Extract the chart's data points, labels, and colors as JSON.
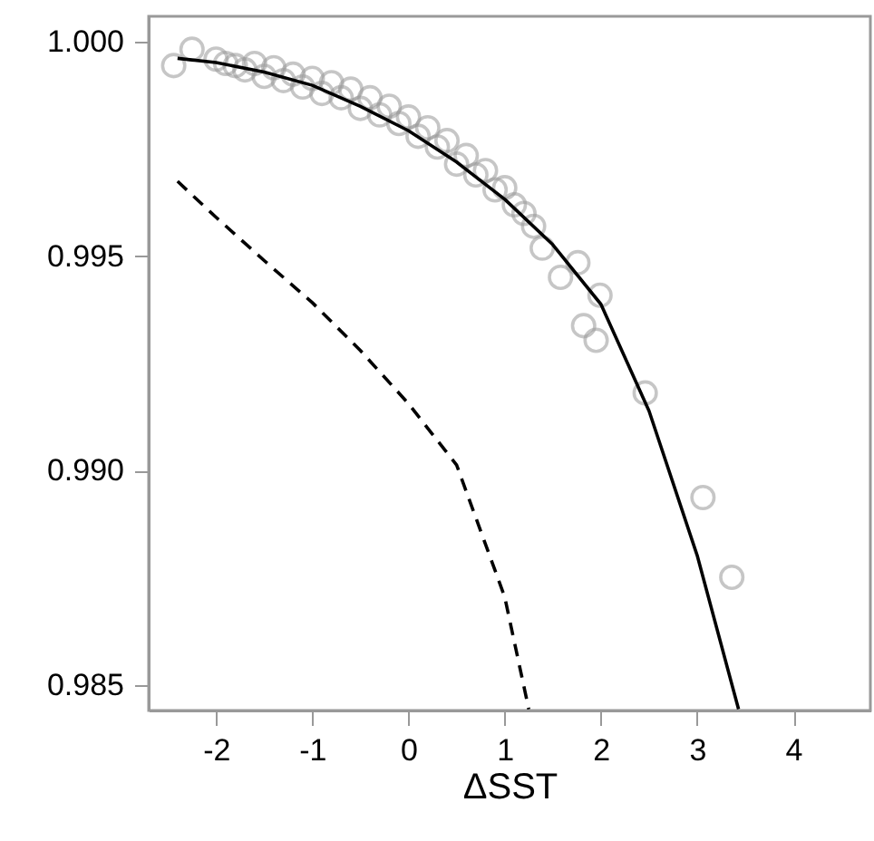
{
  "chart_data": {
    "type": "scatter",
    "xlabel": "ΔSST",
    "xlim": [
      -2.7,
      4.8
    ],
    "ylim": [
      0.9844,
      1.0006
    ],
    "xticks": [
      -2,
      -1,
      0,
      1,
      2,
      3,
      4
    ],
    "yticks": [
      {
        "value": 1.0,
        "label": "1.000"
      },
      {
        "value": 0.995,
        "label": "0.995"
      },
      {
        "value": 0.99,
        "label": "0.990"
      },
      {
        "value": 0.985,
        "label": "0.985"
      }
    ],
    "series": [
      {
        "marker": "circle",
        "color": "#999999",
        "x": [
          -2.44,
          -2.25,
          -2.0,
          -1.9,
          -1.8,
          -1.7,
          -1.6,
          -1.5,
          -1.4,
          -1.3,
          -1.2,
          -1.1,
          -1.0,
          -0.9,
          -0.8,
          -0.7,
          -0.6,
          -0.5,
          -0.4,
          -0.3,
          -0.2,
          -0.1,
          0.0,
          0.1,
          0.2,
          0.3,
          0.4,
          0.5,
          0.6,
          0.7,
          0.8,
          0.9,
          1.0,
          1.1,
          1.2,
          1.3,
          1.39,
          1.58,
          1.76,
          1.82,
          1.95,
          1.99,
          2.46,
          3.06,
          3.36
        ],
        "values": [
          0.99945,
          0.99983,
          0.9996,
          0.9995,
          0.99945,
          0.99935,
          0.9995,
          0.9992,
          0.9994,
          0.9991,
          0.99925,
          0.99895,
          0.99915,
          0.9988,
          0.99905,
          0.9987,
          0.9989,
          0.99845,
          0.9987,
          0.9983,
          0.9985,
          0.9981,
          0.99825,
          0.9978,
          0.998,
          0.99755,
          0.9977,
          0.99715,
          0.99735,
          0.9969,
          0.997,
          0.99655,
          0.9966,
          0.9962,
          0.996,
          0.9957,
          0.99519,
          0.99451,
          0.99485,
          0.99338,
          0.99304,
          0.99409,
          0.99181,
          0.98937,
          0.98751
        ]
      },
      {
        "type": "line",
        "line_style": "solid",
        "color": "#000000",
        "x": [
          -2.4,
          -2,
          -1.5,
          -1,
          -0.5,
          0,
          0.5,
          1,
          1.5,
          2,
          2.5,
          3,
          3.43
        ],
        "values": [
          0.99962,
          0.99952,
          0.9993,
          0.99899,
          0.9985,
          0.99793,
          0.9972,
          0.99633,
          0.99527,
          0.99388,
          0.99139,
          0.98802,
          0.98443
        ]
      },
      {
        "type": "line",
        "line_style": "dashed",
        "color": "#000000",
        "x": [
          -2.4,
          -2,
          -1.5,
          -1,
          -0.5,
          0,
          0.5,
          1,
          1.25
        ],
        "values": [
          0.99675,
          0.99591,
          0.9949,
          0.99392,
          0.9928,
          0.99156,
          0.99013,
          0.98705,
          0.98443
        ]
      }
    ]
  }
}
